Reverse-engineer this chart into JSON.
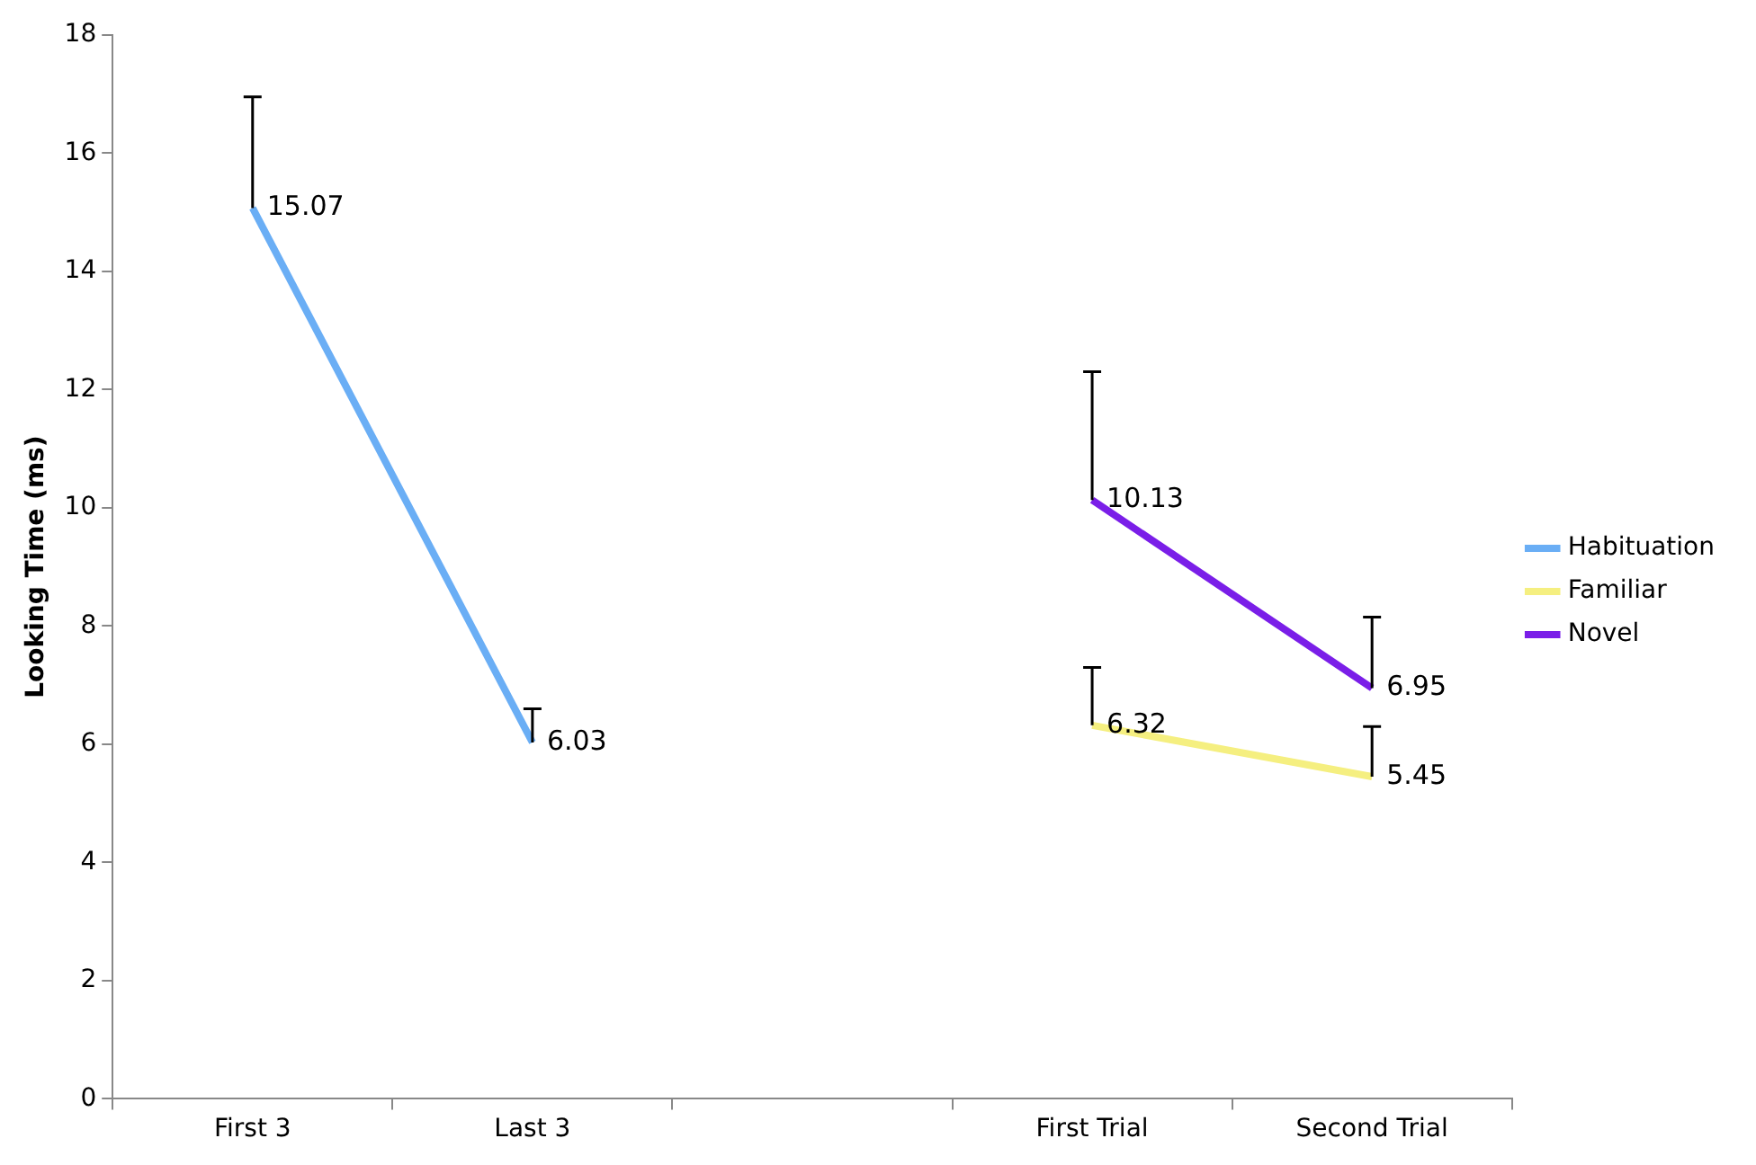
{
  "chart_data": {
    "type": "line",
    "ylabel": "Looking Time (ms)",
    "categories": [
      "First 3",
      "Last 3",
      null,
      "First Trial",
      "Second Trial"
    ],
    "series": [
      {
        "name": "Habituation",
        "color": "#6aaef5",
        "values": [
          15.07,
          6.03,
          null,
          null,
          null
        ],
        "errors": [
          [
            15.07,
            16.95
          ],
          [
            6.03,
            6.6
          ],
          null,
          null,
          null
        ]
      },
      {
        "name": "Familiar",
        "color": "#f5ef80",
        "values": [
          null,
          null,
          null,
          6.32,
          5.45
        ],
        "errors": [
          null,
          null,
          null,
          [
            6.32,
            7.3
          ],
          [
            5.45,
            6.3
          ]
        ]
      },
      {
        "name": "Novel",
        "color": "#7a1ee8",
        "values": [
          null,
          null,
          null,
          10.13,
          6.95
        ],
        "errors": [
          null,
          null,
          null,
          [
            10.13,
            12.3
          ],
          [
            6.95,
            8.15
          ]
        ]
      }
    ],
    "ylim": [
      0,
      18
    ],
    "yticks": [
      0,
      2,
      4,
      6,
      8,
      10,
      12,
      14,
      16,
      18
    ],
    "data_labels": true,
    "legend": "right",
    "grid": false,
    "marker": "none",
    "line_style": "solid"
  }
}
